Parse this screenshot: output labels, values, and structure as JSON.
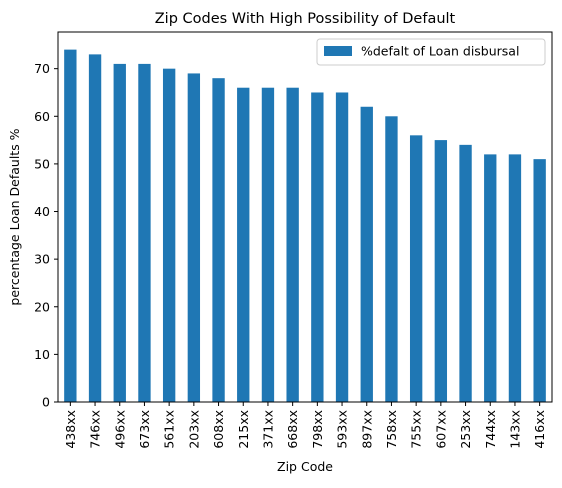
{
  "chart_data": {
    "type": "bar",
    "title": "Zip Codes With High Possibility of Default",
    "xlabel": "Zip Code",
    "ylabel": "percentage Loan Defaults %",
    "categories": [
      "438xx",
      "746xx",
      "496xx",
      "673xx",
      "561xx",
      "203xx",
      "608xx",
      "215xx",
      "371xx",
      "668xx",
      "798xx",
      "593xx",
      "897xx",
      "758xx",
      "755xx",
      "607xx",
      "253xx",
      "744xx",
      "143xx",
      "416xx"
    ],
    "series": [
      {
        "name": "%defalt of Loan disbursal",
        "values": [
          74,
          73,
          71,
          71,
          70,
          69,
          68,
          66,
          66,
          66,
          65,
          65,
          62,
          60,
          56,
          55,
          54,
          52,
          52,
          51
        ],
        "color": "#1f77b4"
      }
    ],
    "ylim": [
      0,
      77.7
    ],
    "yticks": [
      0,
      10,
      20,
      30,
      40,
      50,
      60,
      70
    ],
    "grid": false,
    "legend_position": "top-right"
  }
}
